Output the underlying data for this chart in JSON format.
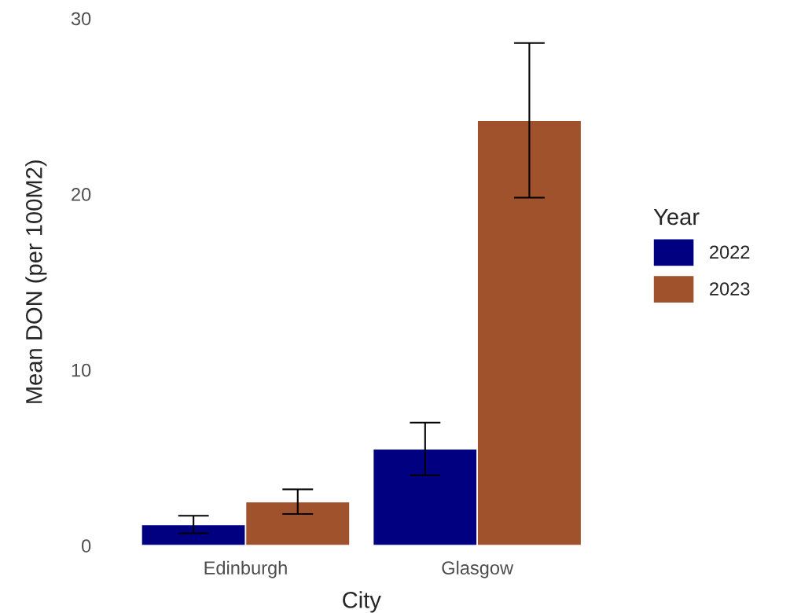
{
  "chart_data": {
    "type": "bar",
    "xlabel": "City",
    "ylabel": "Mean DON (per 100M2)",
    "legend_title": "Year",
    "categories": [
      "Edinburgh",
      "Glasgow"
    ],
    "series": [
      {
        "name": "2022",
        "color": "#000080",
        "values": [
          1.2,
          5.5
        ],
        "errors": [
          0.5,
          1.5
        ]
      },
      {
        "name": "2023",
        "color": "#a0522d",
        "values": [
          2.5,
          24.2
        ],
        "errors": [
          0.7,
          4.4
        ]
      }
    ],
    "ylim": [
      0,
      30
    ],
    "yticks": [
      0,
      10,
      20,
      30
    ],
    "grid": false,
    "legend": "right"
  }
}
